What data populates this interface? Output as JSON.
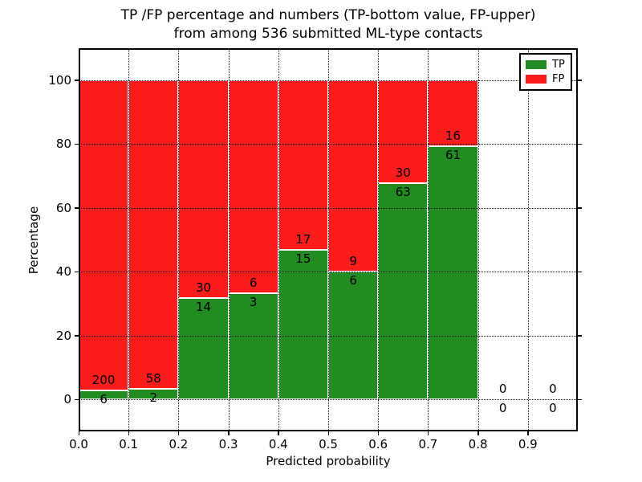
{
  "chart_data": {
    "type": "bar",
    "stacked": true,
    "title": "TP /FP percentage and numbers (TP-bottom value, FP-upper)\nfrom among 536 submitted ML-type contacts",
    "xlabel": "Predicted probability",
    "ylabel": "Percentage",
    "xlim": [
      0.0,
      1.0
    ],
    "ylim": [
      -10,
      110
    ],
    "grid": "dotted, both axes",
    "colors": {
      "tp": "#228b22",
      "fp": "#fb1c1c"
    },
    "legend": {
      "position": "upper right",
      "items": [
        {
          "label": "TP",
          "color": "#228b22"
        },
        {
          "label": "FP",
          "color": "#fb1c1c"
        }
      ]
    },
    "xticks": [
      {
        "value": 0.0,
        "label": "0.0"
      },
      {
        "value": 0.1,
        "label": "0.1"
      },
      {
        "value": 0.2,
        "label": "0.2"
      },
      {
        "value": 0.3,
        "label": "0.3"
      },
      {
        "value": 0.4,
        "label": "0.4"
      },
      {
        "value": 0.5,
        "label": "0.5"
      },
      {
        "value": 0.6,
        "label": "0.6"
      },
      {
        "value": 0.7,
        "label": "0.7"
      },
      {
        "value": 0.8,
        "label": "0.8"
      },
      {
        "value": 0.9,
        "label": "0.9"
      }
    ],
    "yticks": [
      {
        "value": 0,
        "label": "0"
      },
      {
        "value": 20,
        "label": "20"
      },
      {
        "value": 40,
        "label": "40"
      },
      {
        "value": 60,
        "label": "60"
      },
      {
        "value": 80,
        "label": "80"
      },
      {
        "value": 100,
        "label": "100"
      }
    ],
    "bins": [
      {
        "x0": 0.0,
        "x1": 0.1,
        "tp": 6,
        "fp": 200
      },
      {
        "x0": 0.1,
        "x1": 0.2,
        "tp": 2,
        "fp": 58
      },
      {
        "x0": 0.2,
        "x1": 0.3,
        "tp": 14,
        "fp": 30
      },
      {
        "x0": 0.3,
        "x1": 0.4,
        "tp": 3,
        "fp": 6
      },
      {
        "x0": 0.4,
        "x1": 0.5,
        "tp": 15,
        "fp": 17
      },
      {
        "x0": 0.5,
        "x1": 0.6,
        "tp": 6,
        "fp": 9
      },
      {
        "x0": 0.6,
        "x1": 0.7,
        "tp": 63,
        "fp": 30
      },
      {
        "x0": 0.7,
        "x1": 0.8,
        "tp": 61,
        "fp": 16
      },
      {
        "x0": 0.8,
        "x1": 0.9,
        "tp": 0,
        "fp": 0
      },
      {
        "x0": 0.9,
        "x1": 1.0,
        "tp": 0,
        "fp": 0
      }
    ],
    "total_contacts": 536
  }
}
